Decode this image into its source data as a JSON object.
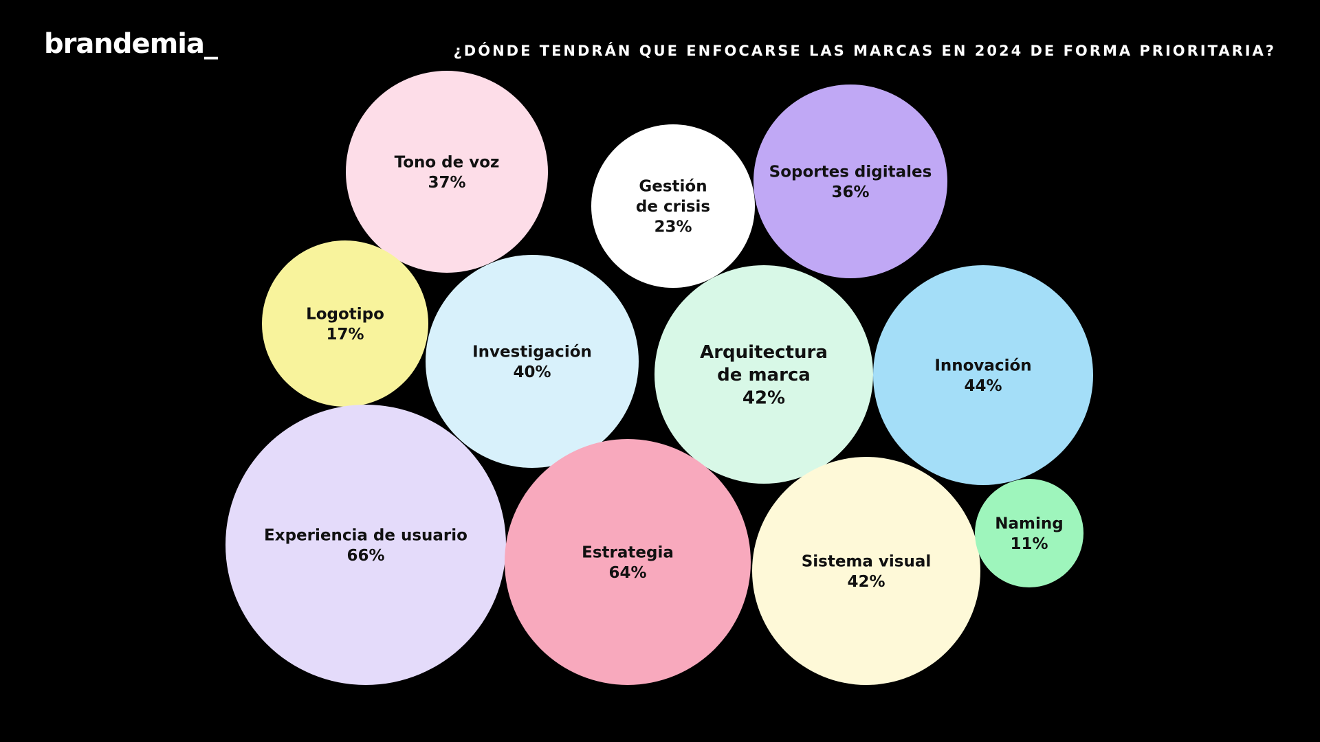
{
  "brand": {
    "logo_text": "brandemia_"
  },
  "header": {
    "title": "¿DÓNDE TENDRÁN QUE ENFOCARSE LAS MARCAS EN 2024 DE FORMA PRIORITARIA?"
  },
  "colors": {
    "background": "#000000",
    "text_light": "#ffffff",
    "text_dark": "#111111"
  },
  "chart_data": {
    "type": "bubble",
    "title": "¿DÓNDE TENDRÁN QUE ENFOCARSE LAS MARCAS EN 2024 DE FORMA PRIORITARIA?",
    "unit": "%",
    "items": [
      {
        "id": "tono-de-voz",
        "label_lines": [
          "Tono de voz"
        ],
        "value": 37,
        "value_label": "37%",
        "color": "#fddde8"
      },
      {
        "id": "gestion-de-crisis",
        "label_lines": [
          "Gestión",
          "de crisis"
        ],
        "value": 23,
        "value_label": "23%",
        "color": "#ffffff"
      },
      {
        "id": "soportes-digitales",
        "label_lines": [
          "Soportes digitales"
        ],
        "value": 36,
        "value_label": "36%",
        "color": "#c0a8f5"
      },
      {
        "id": "logotipo",
        "label_lines": [
          "Logotipo"
        ],
        "value": 17,
        "value_label": "17%",
        "color": "#f8f39c"
      },
      {
        "id": "investigacion",
        "label_lines": [
          "Investigación"
        ],
        "value": 40,
        "value_label": "40%",
        "color": "#d8f1fb"
      },
      {
        "id": "arquitectura-de-marca",
        "label_lines": [
          "Arquitectura",
          "de marca"
        ],
        "value": 42,
        "value_label": "42%",
        "color": "#d8f8e7"
      },
      {
        "id": "innovacion",
        "label_lines": [
          "Innovación"
        ],
        "value": 44,
        "value_label": "44%",
        "color": "#a4def8"
      },
      {
        "id": "experiencia-de-usuario",
        "label_lines": [
          "Experiencia de usuario"
        ],
        "value": 66,
        "value_label": "66%",
        "color": "#e4dbfa"
      },
      {
        "id": "estrategia",
        "label_lines": [
          "Estrategia"
        ],
        "value": 64,
        "value_label": "64%",
        "color": "#f8a9bd"
      },
      {
        "id": "sistema-visual",
        "label_lines": [
          "Sistema visual"
        ],
        "value": 42,
        "value_label": "42%",
        "color": "#fef9d8"
      },
      {
        "id": "naming",
        "label_lines": [
          "Naming"
        ],
        "value": 11,
        "value_label": "11%",
        "color": "#9ef5bc"
      }
    ]
  }
}
